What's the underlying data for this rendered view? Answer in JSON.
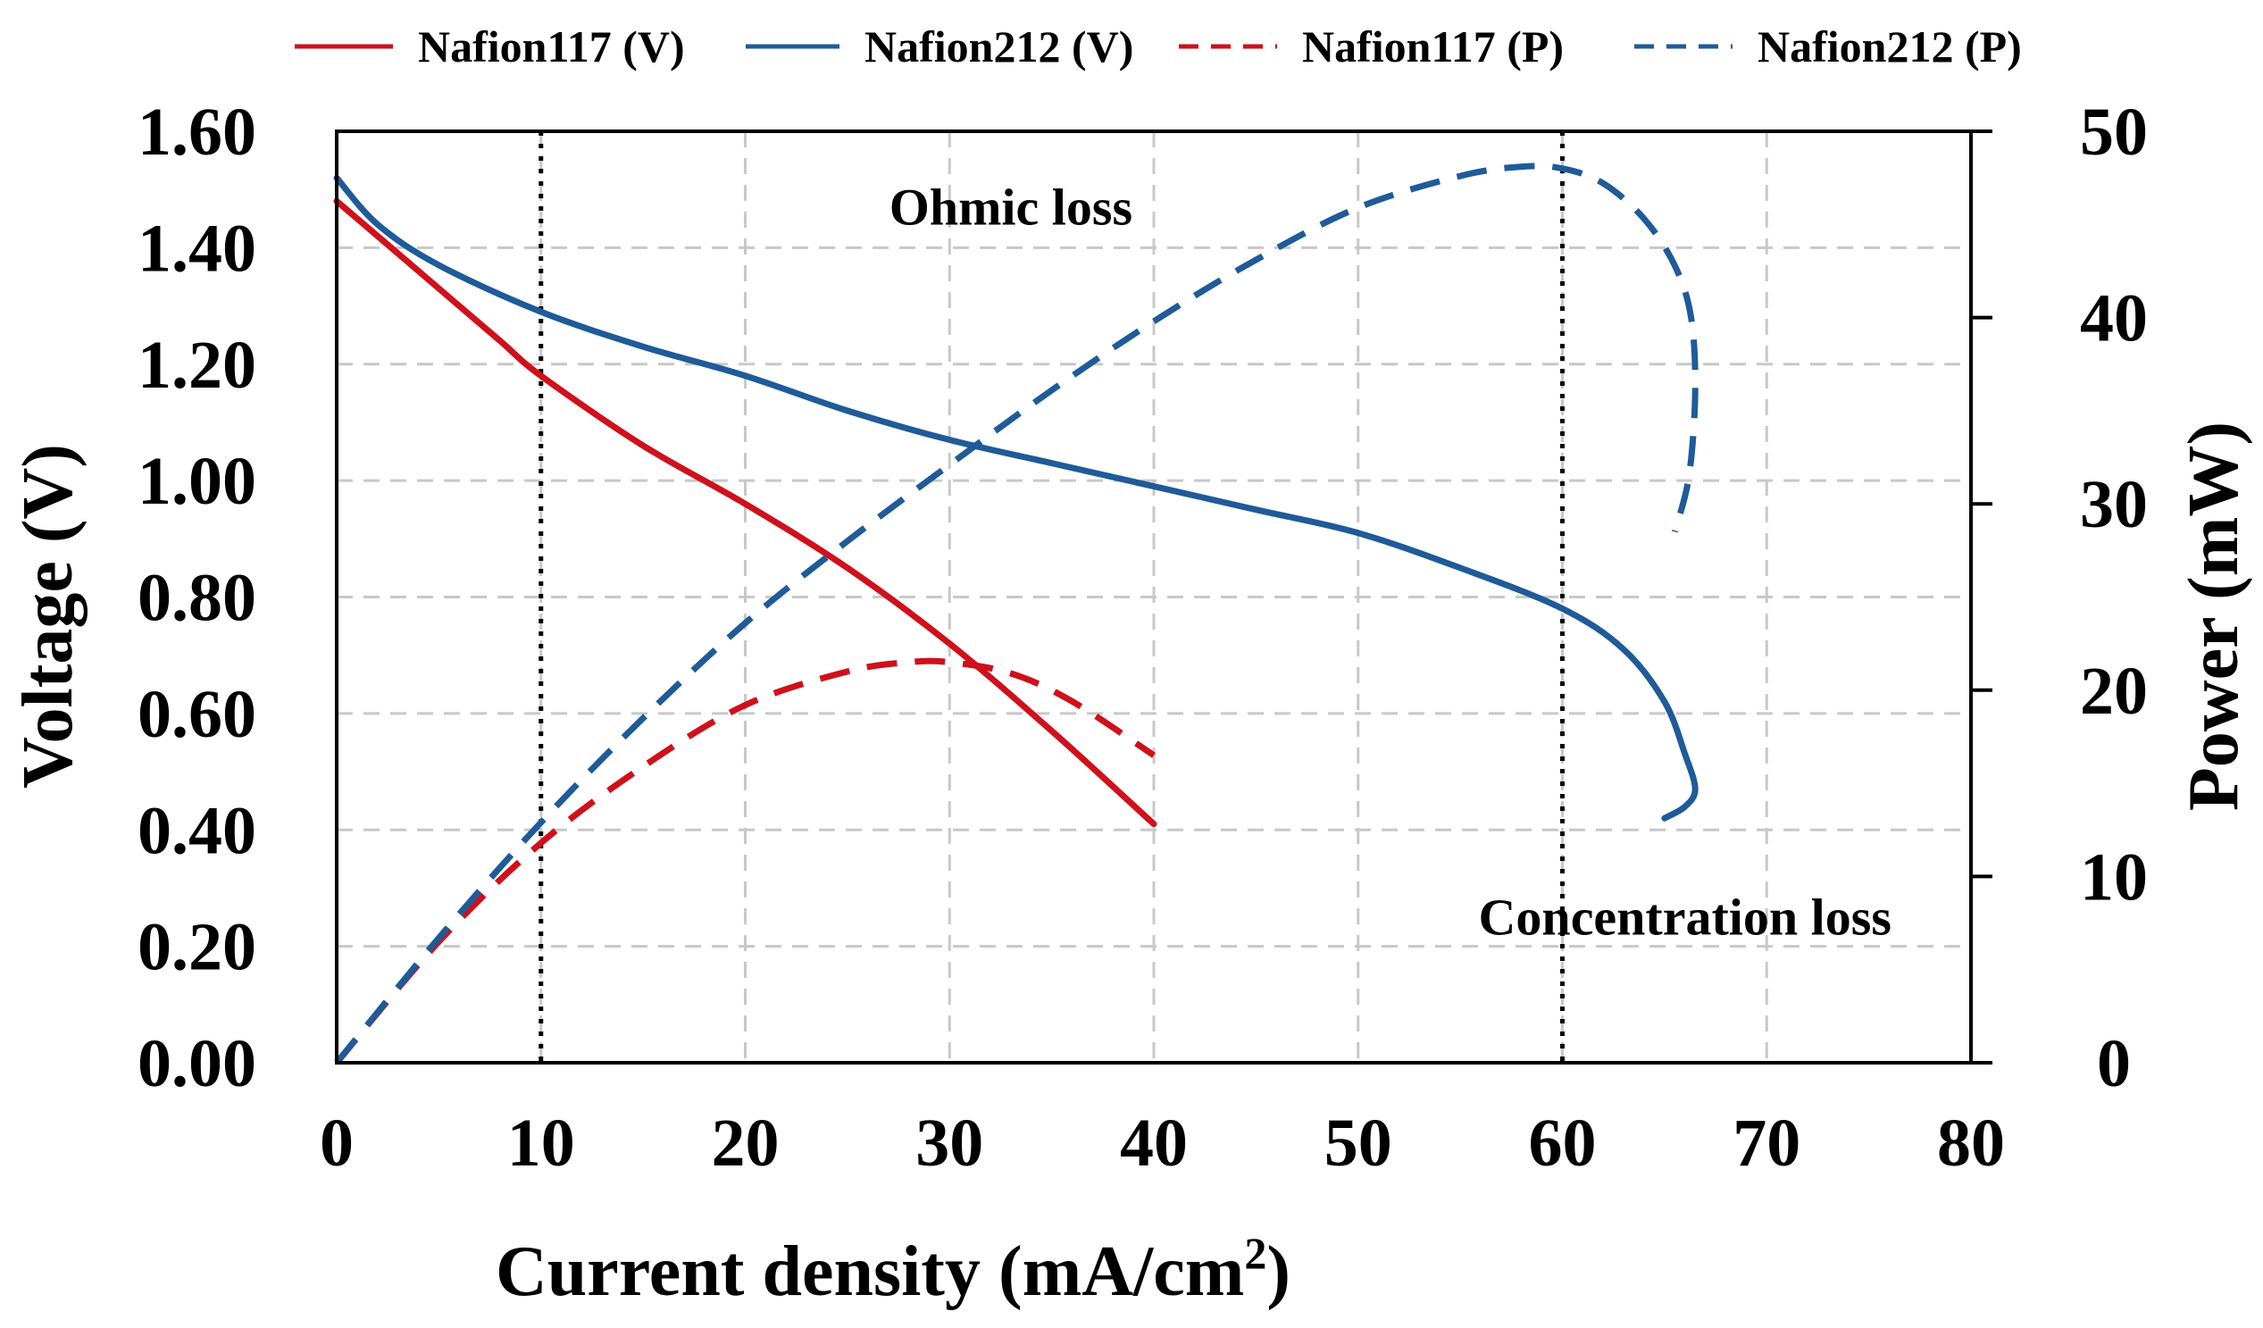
{
  "chart_data": {
    "type": "line",
    "xlabel": "Current density (mA/cm",
    "xlabel_sup": "2",
    "xlabel_end": ")",
    "ylabel": "Voltage (V)",
    "y2label": "Power (mW)",
    "xlim": [
      0,
      80
    ],
    "ylim": [
      0,
      1.6
    ],
    "y2lim": [
      0,
      50
    ],
    "x_ticks": [
      0,
      10,
      20,
      30,
      40,
      50,
      60,
      70,
      80
    ],
    "x_tick_labels": [
      "0",
      "10",
      "20",
      "30",
      "40",
      "50",
      "60",
      "70",
      "80"
    ],
    "y_ticks": [
      0,
      0.2,
      0.4,
      0.6,
      0.8,
      1.0,
      1.2,
      1.4,
      1.6
    ],
    "y_tick_labels": [
      "0.00",
      "0.20",
      "0.40",
      "0.60",
      "0.80",
      "1.00",
      "1.20",
      "1.40",
      "1.60"
    ],
    "y2_ticks": [
      0,
      10,
      20,
      30,
      40,
      50
    ],
    "y2_tick_labels": [
      "0",
      "10",
      "20",
      "30",
      "40",
      "50"
    ],
    "grid": true,
    "legend_position": "top",
    "vlines": [
      10,
      60
    ],
    "annotations": [
      {
        "text": "Ohmic loss",
        "x": 33,
        "y": 1.44
      },
      {
        "text": "Concentration loss",
        "x": 66,
        "y": 0.22
      }
    ],
    "series": [
      {
        "name": "Nafion117 (V)",
        "axis": "left",
        "color": "#d0101b",
        "dash": false,
        "x": [
          0,
          2,
          5,
          8,
          10,
          15,
          20,
          25,
          30,
          35,
          40
        ],
        "y": [
          1.48,
          1.42,
          1.33,
          1.24,
          1.18,
          1.06,
          0.96,
          0.85,
          0.72,
          0.57,
          0.41
        ]
      },
      {
        "name": "Nafion212 (V)",
        "axis": "left",
        "color": "#1f5b99",
        "dash": false,
        "x": [
          0,
          2,
          5,
          10,
          15,
          20,
          25,
          30,
          35,
          40,
          45,
          50,
          55,
          60,
          63,
          65,
          66,
          66.5,
          66,
          65
        ],
        "y": [
          1.52,
          1.44,
          1.37,
          1.29,
          1.23,
          1.18,
          1.12,
          1.07,
          1.03,
          0.99,
          0.95,
          0.91,
          0.85,
          0.78,
          0.71,
          0.62,
          0.53,
          0.47,
          0.44,
          0.42
        ]
      },
      {
        "name": "Nafion117 (P)",
        "axis": "right",
        "color": "#d0101b",
        "dash": true,
        "x": [
          0,
          5,
          10,
          15,
          20,
          25,
          28,
          30,
          33,
          36,
          40
        ],
        "y": [
          0,
          6.5,
          11.8,
          15.9,
          19.2,
          21.0,
          21.5,
          21.5,
          20.9,
          19.4,
          16.5
        ]
      },
      {
        "name": "Nafion212 (P)",
        "axis": "right",
        "color": "#1f5b99",
        "dash": true,
        "x": [
          0,
          5,
          10,
          15,
          20,
          25,
          30,
          35,
          40,
          45,
          50,
          55,
          58,
          60,
          62,
          64,
          65.5,
          66.3,
          66.5,
          66.2,
          65.5
        ],
        "y": [
          0,
          6.7,
          12.9,
          18.5,
          23.6,
          28.0,
          32.1,
          36.1,
          39.8,
          43.1,
          45.9,
          47.6,
          48.1,
          48.0,
          47.2,
          45.3,
          42.8,
          40.0,
          36.0,
          31.5,
          28.5
        ]
      }
    ]
  }
}
